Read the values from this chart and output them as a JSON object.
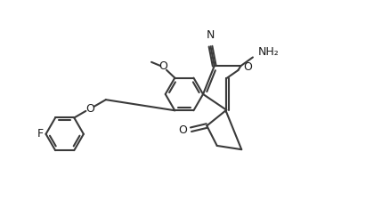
{
  "bg_color": "#ffffff",
  "line_color": "#3a3a3a",
  "text_color": "#1a1a1a",
  "line_width": 1.5,
  "figsize": [
    4.29,
    2.25
  ],
  "dpi": 100,
  "xlim": [
    0,
    10
  ],
  "ylim": [
    0,
    5.25
  ]
}
